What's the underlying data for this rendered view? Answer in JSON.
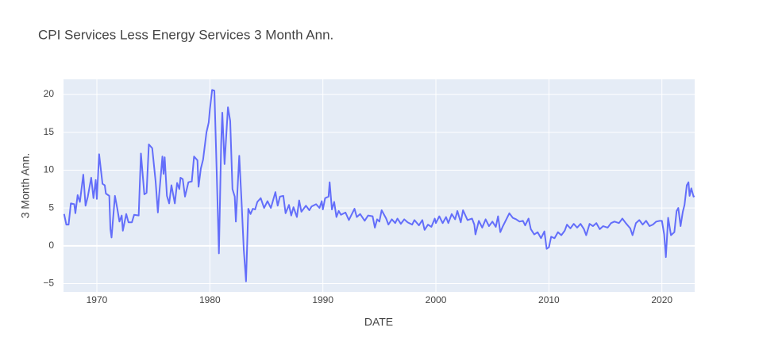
{
  "chart_data": {
    "type": "line",
    "title": "CPI Services Less Energy Services 3 Month Ann.",
    "xlabel": "DATE",
    "ylabel": "3 Month Ann.",
    "xlim": [
      1967.05,
      2022.9
    ],
    "ylim": [
      -6.1,
      22
    ],
    "xticks": [
      1970,
      1980,
      1990,
      2000,
      2010,
      2020
    ],
    "yticks": [
      {
        "value": -5,
        "label": "−5"
      },
      0,
      5,
      10,
      15,
      20
    ],
    "grid": true,
    "series": [
      {
        "name": "3 Month Ann.",
        "color": "#636efa",
        "x": [
          1967.1,
          1967.3,
          1967.5,
          1967.7,
          1968.0,
          1968.1,
          1968.3,
          1968.5,
          1968.8,
          1969.0,
          1969.2,
          1969.5,
          1969.7,
          1969.9,
          1970.0,
          1970.2,
          1970.5,
          1970.7,
          1970.8,
          1971.1,
          1971.2,
          1971.3,
          1971.6,
          1971.8,
          1972.0,
          1972.2,
          1972.3,
          1972.6,
          1972.8,
          1973.1,
          1973.3,
          1973.7,
          1973.9,
          1974.2,
          1974.4,
          1974.6,
          1974.9,
          1975.2,
          1975.4,
          1975.5,
          1975.8,
          1975.9,
          1976.0,
          1976.2,
          1976.4,
          1976.6,
          1976.9,
          1977.1,
          1977.3,
          1977.4,
          1977.6,
          1977.8,
          1978.1,
          1978.4,
          1978.6,
          1978.9,
          1979.0,
          1979.2,
          1979.4,
          1979.7,
          1979.9,
          1980.0,
          1980.2,
          1980.4,
          1980.6,
          1980.8,
          1981.0,
          1981.1,
          1981.3,
          1981.6,
          1981.8,
          1982.0,
          1982.2,
          1982.3,
          1982.6,
          1982.8,
          1983.0,
          1983.2,
          1983.4,
          1983.6,
          1983.8,
          1984.0,
          1984.2,
          1984.5,
          1984.8,
          1985.1,
          1985.4,
          1985.8,
          1986.0,
          1986.2,
          1986.5,
          1986.7,
          1987.0,
          1987.2,
          1987.4,
          1987.7,
          1987.9,
          1988.1,
          1988.5,
          1988.8,
          1989.0,
          1989.4,
          1989.7,
          1989.9,
          1990.0,
          1990.2,
          1990.5,
          1990.6,
          1990.8,
          1991.0,
          1991.2,
          1991.4,
          1991.6,
          1992.0,
          1992.3,
          1992.8,
          1993.0,
          1993.3,
          1993.7,
          1994.0,
          1994.4,
          1994.6,
          1994.8,
          1995.0,
          1995.2,
          1995.6,
          1995.8,
          1996.1,
          1996.4,
          1996.6,
          1996.9,
          1997.2,
          1997.5,
          1997.9,
          1998.1,
          1998.5,
          1998.8,
          1999.0,
          1999.3,
          1999.6,
          1999.9,
          2000.0,
          2000.3,
          2000.6,
          2000.9,
          2001.1,
          2001.4,
          2001.7,
          2001.9,
          2002.2,
          2002.4,
          2002.8,
          2003.2,
          2003.4,
          2003.5,
          2003.8,
          2004.1,
          2004.4,
          2004.7,
          2005.0,
          2005.3,
          2005.5,
          2005.7,
          2005.9,
          2006.2,
          2006.5,
          2006.8,
          2007.1,
          2007.4,
          2007.7,
          2007.9,
          2008.2,
          2008.4,
          2008.7,
          2009.0,
          2009.3,
          2009.6,
          2009.8,
          2010.0,
          2010.2,
          2010.5,
          2010.8,
          2011.1,
          2011.4,
          2011.6,
          2011.9,
          2012.2,
          2012.5,
          2012.8,
          2013.1,
          2013.3,
          2013.6,
          2013.9,
          2014.2,
          2014.5,
          2014.8,
          2015.2,
          2015.5,
          2015.8,
          2016.2,
          2016.5,
          2016.8,
          2017.2,
          2017.4,
          2017.7,
          2018.0,
          2018.3,
          2018.6,
          2018.9,
          2019.2,
          2019.5,
          2019.8,
          2020.0,
          2020.2,
          2020.35,
          2020.55,
          2020.8,
          2021.1,
          2021.3,
          2021.45,
          2021.65,
          2021.85,
          2022.0,
          2022.2,
          2022.35,
          2022.45,
          2022.6,
          2022.8,
          2022.88
        ],
        "values": [
          4.2,
          2.8,
          2.8,
          5.6,
          5.5,
          4.3,
          6.7,
          5.8,
          9.4,
          5.3,
          6.5,
          9.0,
          6.3,
          8.7,
          6.2,
          12.1,
          8.2,
          8.0,
          6.9,
          6.6,
          2.2,
          1.1,
          6.6,
          5.0,
          3.2,
          4.0,
          2.0,
          4.2,
          3.1,
          3.1,
          4.1,
          4.0,
          12.2,
          6.8,
          7.0,
          13.4,
          12.9,
          8.5,
          4.4,
          6.5,
          11.8,
          9.5,
          11.7,
          6.6,
          5.6,
          8.0,
          5.6,
          8.3,
          7.5,
          9.0,
          8.8,
          6.5,
          8.4,
          8.5,
          11.8,
          11.3,
          7.8,
          10.2,
          11.4,
          15.0,
          16.3,
          18.0,
          20.6,
          20.5,
          10.0,
          -1.0,
          13.5,
          17.6,
          10.8,
          18.3,
          16.5,
          7.5,
          6.5,
          3.2,
          11.9,
          6.0,
          -0.5,
          -4.7,
          4.9,
          4.2,
          4.9,
          4.8,
          5.8,
          6.3,
          5.0,
          5.9,
          5.0,
          7.1,
          5.3,
          6.5,
          6.6,
          4.3,
          5.4,
          4.0,
          5.1,
          3.8,
          6.0,
          4.5,
          5.3,
          4.7,
          5.2,
          5.5,
          5.0,
          5.9,
          4.8,
          6.3,
          6.5,
          8.4,
          4.8,
          5.8,
          3.8,
          4.6,
          4.1,
          4.4,
          3.4,
          4.9,
          3.8,
          4.2,
          3.3,
          4.0,
          3.9,
          2.4,
          3.5,
          3.2,
          4.7,
          3.6,
          2.8,
          3.5,
          3.0,
          3.6,
          2.9,
          3.5,
          3.1,
          2.8,
          3.4,
          2.7,
          3.4,
          2.1,
          2.8,
          2.5,
          3.6,
          3.0,
          3.9,
          3.0,
          3.8,
          3.0,
          4.2,
          3.5,
          4.6,
          3.1,
          4.7,
          3.4,
          3.6,
          2.8,
          1.5,
          3.3,
          2.4,
          3.5,
          2.6,
          3.2,
          2.5,
          3.9,
          1.8,
          2.5,
          3.4,
          4.3,
          3.7,
          3.5,
          3.2,
          3.3,
          2.7,
          3.6,
          2.2,
          1.5,
          1.8,
          1.0,
          1.9,
          -0.4,
          -0.2,
          1.2,
          1.0,
          1.8,
          1.4,
          2.0,
          2.8,
          2.3,
          2.9,
          2.4,
          2.9,
          2.2,
          1.4,
          2.9,
          2.6,
          3.0,
          2.2,
          2.6,
          2.4,
          3.0,
          3.2,
          3.0,
          3.6,
          3.0,
          2.3,
          1.4,
          3.0,
          3.4,
          2.8,
          3.3,
          2.6,
          2.8,
          3.2,
          3.3,
          3.3,
          1.5,
          -1.5,
          3.7,
          1.4,
          1.8,
          4.6,
          5.0,
          2.6,
          4.5,
          5.4,
          8.0,
          8.4,
          6.6,
          7.6,
          6.5,
          6.6
        ]
      }
    ]
  }
}
